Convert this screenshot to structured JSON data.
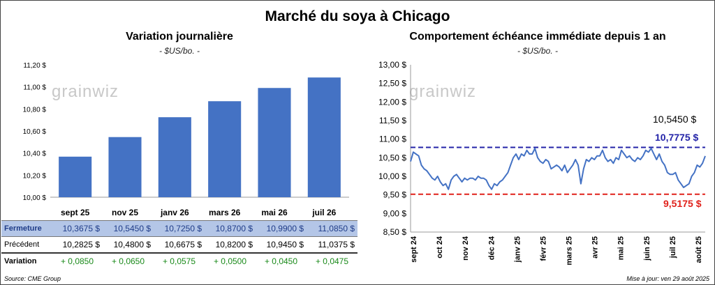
{
  "title": "Marché du soya à Chicago",
  "left": {
    "title": "Variation journalière",
    "subtitle": "- $US/bo. -",
    "logo": "grainwiz"
  },
  "right": {
    "title": "Comportement échéance immédiate depuis 1 an",
    "subtitle": "- $US/bo. -",
    "logo": "grainwiz",
    "last_label": "10,5450 $",
    "high_label": "10,7775 $",
    "low_label": "9,5175 $"
  },
  "colors": {
    "bar": "#4472c4",
    "line": "#4472c4",
    "high": "#2323a8",
    "low": "#e0201a",
    "positive": "#1a8a1a"
  },
  "table": {
    "labels": {
      "close": "Fermeture",
      "previous": "Précédent",
      "change": "Variation"
    },
    "close": [
      "10,3675  $",
      "10,5450  $",
      "10,7250  $",
      "10,8700  $",
      "10,9900  $",
      "11,0850  $"
    ],
    "previous": [
      "10,2825  $",
      "10,4800  $",
      "10,6675  $",
      "10,8200  $",
      "10,9450  $",
      "11,0375  $"
    ],
    "change": [
      "+ 0,0850",
      "+ 0,0650",
      "+ 0,0575",
      "+ 0,0500",
      "+ 0,0450",
      "+ 0,0475"
    ]
  },
  "footer": {
    "source": "Source: CME Group",
    "updated": "Mise à jour: ven 29 août 2025"
  },
  "chart_data": [
    {
      "type": "bar",
      "title": "Variation journalière",
      "categories": [
        "sept 25",
        "nov 25",
        "janv 26",
        "mars 26",
        "mai 26",
        "juil 26"
      ],
      "values": [
        10.3675,
        10.545,
        10.725,
        10.87,
        10.99,
        11.085
      ],
      "ylim": [
        10.0,
        11.2
      ],
      "yticks": [
        10.0,
        10.2,
        10.4,
        10.6,
        10.8,
        11.0,
        11.2
      ],
      "ytick_labels": [
        "10,00 $",
        "10,20 $",
        "10,40 $",
        "10,60 $",
        "10,80 $",
        "11,00 $",
        "11,20 $"
      ],
      "grid": false
    },
    {
      "type": "line",
      "title": "Comportement échéance immédiate depuis 1 an",
      "ylim": [
        8.5,
        13.0
      ],
      "yticks": [
        8.5,
        9.0,
        9.5,
        10.0,
        10.5,
        11.0,
        11.5,
        12.0,
        12.5,
        13.0
      ],
      "ytick_labels": [
        "8,50 $",
        "9,00 $",
        "9,50 $",
        "10,00 $",
        "10,50 $",
        "11,00 $",
        "11,50 $",
        "12,00 $",
        "12,50 $",
        "13,00 $"
      ],
      "xtick_labels": [
        "sept 24",
        "oct 24",
        "nov 24",
        "déc 24",
        "janv 25",
        "févr 25",
        "mars 25",
        "avr 25",
        "mai 25",
        "juin 25",
        "juil 25",
        "août 25"
      ],
      "reference_lines": [
        {
          "value": 10.7775,
          "style": "dashed"
        },
        {
          "value": 9.5175,
          "style": "dashed"
        }
      ],
      "series": [
        {
          "values": [
            10.4,
            10.65,
            10.6,
            10.55,
            10.3,
            10.2,
            10.15,
            10.05,
            9.95,
            9.9,
            10.0,
            9.85,
            9.75,
            9.8,
            9.65,
            9.9,
            10.0,
            10.05,
            9.95,
            9.85,
            9.95,
            9.9,
            9.95,
            9.95,
            9.9,
            10.0,
            9.95,
            9.95,
            9.9,
            9.75,
            9.65,
            9.8,
            9.75,
            9.85,
            9.9,
            10.0,
            10.1,
            10.3,
            10.5,
            10.6,
            10.45,
            10.6,
            10.55,
            10.7,
            10.6,
            10.6,
            10.75,
            10.5,
            10.4,
            10.35,
            10.45,
            10.4,
            10.2,
            10.25,
            10.3,
            10.25,
            10.15,
            10.3,
            10.1,
            10.2,
            10.3,
            10.45,
            10.3,
            9.8,
            10.2,
            10.45,
            10.4,
            10.5,
            10.45,
            10.55,
            10.55,
            10.7,
            10.5,
            10.4,
            10.45,
            10.35,
            10.5,
            10.45,
            10.7,
            10.6,
            10.5,
            10.55,
            10.45,
            10.4,
            10.5,
            10.45,
            10.55,
            10.7,
            10.65,
            10.75,
            10.6,
            10.45,
            10.6,
            10.4,
            10.3,
            10.1,
            10.05,
            10.05,
            10.1,
            9.9,
            9.8,
            9.7,
            9.75,
            9.8,
            10.0,
            10.1,
            10.3,
            10.25,
            10.35,
            10.545
          ]
        }
      ]
    }
  ]
}
